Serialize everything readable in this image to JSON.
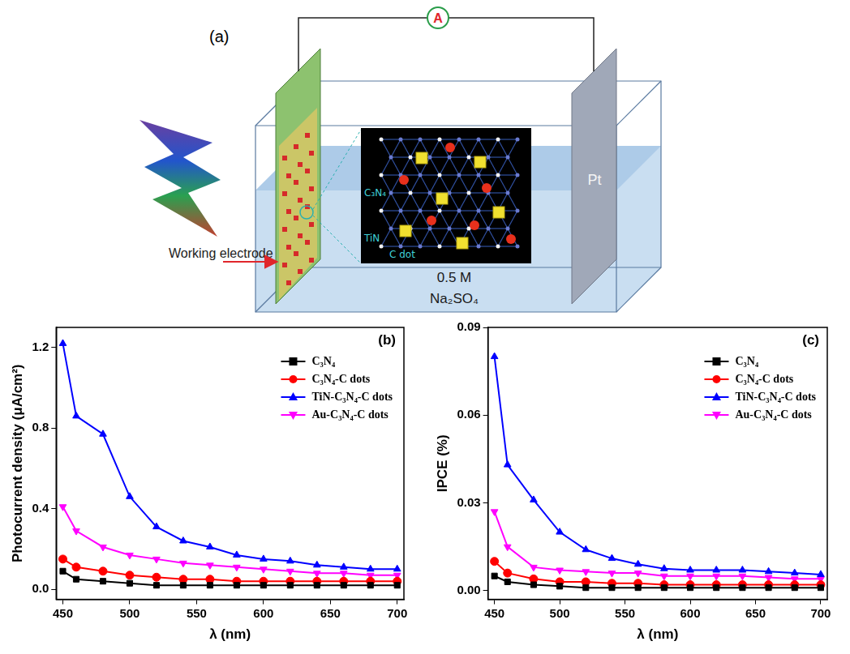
{
  "diagram": {
    "panel": "(a)",
    "ammeter": "A",
    "counter_electrode": "Pt",
    "working_electrode": "Working electrode",
    "electrolyte": [
      "0.5 M",
      "Na₂SO₄"
    ],
    "inset_labels": [
      "C₃N₄",
      "TiN",
      "C dot"
    ]
  },
  "chart_data": [
    {
      "type": "line",
      "annotations": [
        "(b)"
      ],
      "x_label": "λ (nm)",
      "y_label": "Photocurrent density (μA/cm²)",
      "x": [
        450,
        460,
        480,
        500,
        520,
        540,
        560,
        580,
        600,
        620,
        640,
        660,
        680,
        700
      ],
      "xlim": [
        445,
        705
      ],
      "xticks": [
        450,
        500,
        550,
        600,
        650,
        700
      ],
      "ylim": [
        -0.05,
        1.3
      ],
      "yticks": [
        {
          "value": 0,
          "label": "0.0"
        },
        0.4,
        0.8,
        1.2
      ],
      "grid": false,
      "legend": "upper right",
      "series": [
        {
          "name": "C₃N₄",
          "color": "#000000",
          "marker": "square",
          "values": [
            0.09,
            0.05,
            0.04,
            0.03,
            0.02,
            0.02,
            0.02,
            0.02,
            0.02,
            0.02,
            0.02,
            0.02,
            0.02,
            0.02
          ]
        },
        {
          "name": "C₃N₄-C dots",
          "color": "#ff0000",
          "marker": "circle",
          "values": [
            0.15,
            0.11,
            0.09,
            0.07,
            0.06,
            0.05,
            0.05,
            0.04,
            0.04,
            0.04,
            0.04,
            0.04,
            0.04,
            0.04
          ]
        },
        {
          "name": "TiN-C₃N₄-C dots",
          "color": "#0000ff",
          "marker": "triangle",
          "values": [
            1.22,
            0.86,
            0.77,
            0.46,
            0.31,
            0.24,
            0.21,
            0.17,
            0.15,
            0.14,
            0.12,
            0.11,
            0.1,
            0.1
          ]
        },
        {
          "name": "Au-C₃N₄-C dots",
          "color": "#ff00ff",
          "marker": "triangle-down",
          "values": [
            0.41,
            0.29,
            0.21,
            0.17,
            0.15,
            0.13,
            0.12,
            0.11,
            0.1,
            0.09,
            0.08,
            0.08,
            0.07,
            0.07
          ]
        }
      ]
    },
    {
      "type": "line",
      "annotations": [
        "(c)"
      ],
      "x_label": "λ (nm)",
      "y_label": "IPCE (%)",
      "x": [
        450,
        460,
        480,
        500,
        520,
        540,
        560,
        580,
        600,
        620,
        640,
        660,
        680,
        700
      ],
      "xlim": [
        445,
        705
      ],
      "xticks": [
        450,
        500,
        550,
        600,
        650,
        700
      ],
      "ylim": [
        -0.003,
        0.09
      ],
      "yticks": [
        {
          "value": 0,
          "label": "0.00"
        },
        0.03,
        0.06,
        0.09
      ],
      "grid": false,
      "legend": "upper right",
      "series": [
        {
          "name": "C₃N₄",
          "color": "#000000",
          "marker": "square",
          "values": [
            0.005,
            0.003,
            0.002,
            0.0015,
            0.001,
            0.001,
            0.001,
            0.001,
            0.001,
            0.001,
            0.001,
            0.001,
            0.001,
            0.001
          ]
        },
        {
          "name": "C₃N₄-C dots",
          "color": "#ff0000",
          "marker": "circle",
          "values": [
            0.01,
            0.006,
            0.004,
            0.003,
            0.003,
            0.0025,
            0.0025,
            0.002,
            0.002,
            0.002,
            0.002,
            0.002,
            0.002,
            0.002
          ]
        },
        {
          "name": "TiN-C₃N₄-C dots",
          "color": "#0000ff",
          "marker": "triangle",
          "values": [
            0.08,
            0.043,
            0.031,
            0.02,
            0.014,
            0.011,
            0.009,
            0.0075,
            0.007,
            0.007,
            0.007,
            0.0065,
            0.006,
            0.0055
          ]
        },
        {
          "name": "Au-C₃N₄-C dots",
          "color": "#ff00ff",
          "marker": "triangle-down",
          "values": [
            0.027,
            0.015,
            0.008,
            0.007,
            0.0065,
            0.006,
            0.006,
            0.005,
            0.005,
            0.005,
            0.005,
            0.0045,
            0.004,
            0.004
          ]
        }
      ]
    }
  ]
}
